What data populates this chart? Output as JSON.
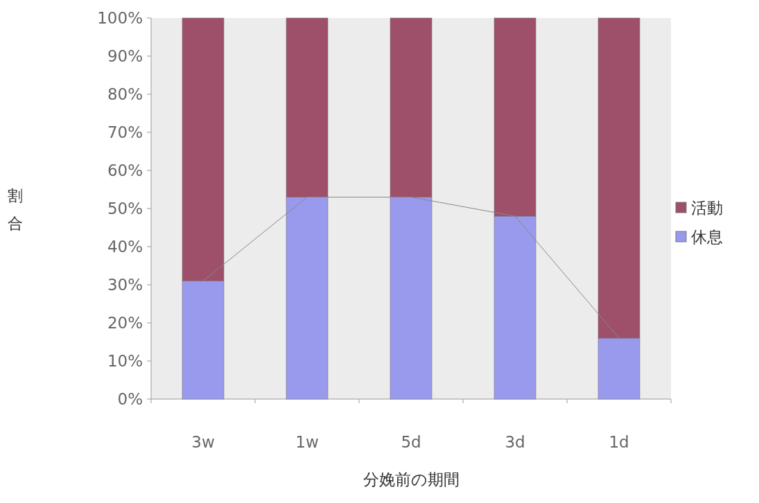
{
  "chart_data": {
    "type": "bar",
    "stacked": true,
    "xlabel": "分娩前の期間",
    "ylabel": "割合",
    "categories": [
      "3w",
      "1w",
      "5d",
      "3d",
      "1d"
    ],
    "series": [
      {
        "name": "休息",
        "color": "#9999ee",
        "values": [
          31,
          53,
          53,
          48,
          16
        ]
      },
      {
        "name": "活動",
        "color": "#9e4f6a",
        "values": [
          69,
          47,
          47,
          52,
          84
        ]
      },
      {
        "type": "line",
        "color": "#888888",
        "values": [
          31,
          53,
          53,
          48,
          16
        ]
      }
    ],
    "ylim": [
      0,
      100
    ],
    "yticks": [
      {
        "value": 0,
        "label": "0%"
      },
      {
        "value": 10,
        "label": "10%"
      },
      {
        "value": 20,
        "label": "20%"
      },
      {
        "value": 30,
        "label": "30%"
      },
      {
        "value": 40,
        "label": "40%"
      },
      {
        "value": 50,
        "label": "50%"
      },
      {
        "value": 60,
        "label": "60%"
      },
      {
        "value": 70,
        "label": "70%"
      },
      {
        "value": 80,
        "label": "80%"
      },
      {
        "value": 90,
        "label": "90%"
      },
      {
        "value": 100,
        "label": "100%"
      }
    ],
    "legend": "right",
    "grid": false
  }
}
